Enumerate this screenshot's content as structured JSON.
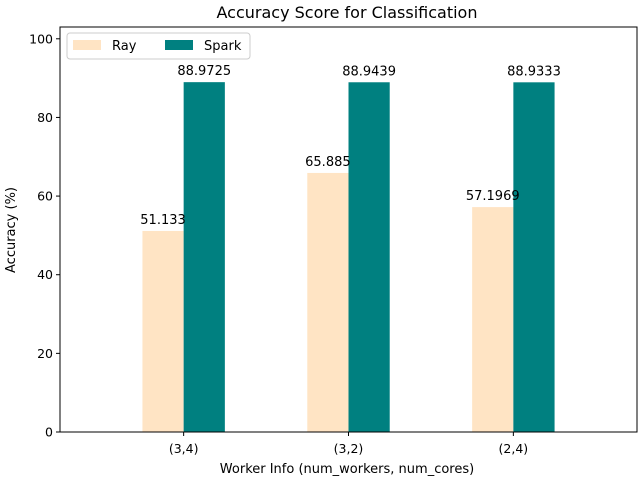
{
  "chart_data": {
    "type": "bar",
    "title": "Accuracy Score for Classification",
    "xlabel": "Worker Info (num_workers, num_cores)",
    "ylabel": "Accuracy (%)",
    "categories": [
      "(3,4)",
      "(3,2)",
      "(2,4)"
    ],
    "ylim": [
      0,
      103
    ],
    "yticks": [
      0,
      20,
      40,
      60,
      80,
      100
    ],
    "grid": false,
    "legend": {
      "placement": "top-left",
      "ncol": 2
    },
    "series": [
      {
        "name": "Ray",
        "color": "#ffe4c4",
        "values": [
          51.133,
          65.885,
          57.1969
        ],
        "labels": [
          "51.133",
          "65.885",
          "57.1969"
        ]
      },
      {
        "name": "Spark",
        "color": "#008080",
        "values": [
          88.9725,
          88.9439,
          88.9333
        ],
        "labels": [
          "88.9725",
          "88.9439",
          "88.9333"
        ]
      }
    ]
  }
}
